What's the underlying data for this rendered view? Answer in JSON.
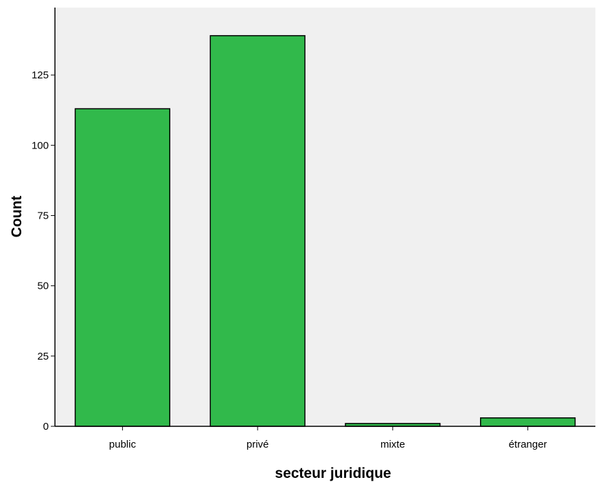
{
  "chart_data": {
    "type": "bar",
    "categories": [
      "public",
      "privé",
      "mixte",
      "étranger"
    ],
    "values": [
      113,
      139,
      1,
      3
    ],
    "xlabel": "secteur juridique",
    "ylabel": "Count",
    "ylim": [
      0,
      149
    ],
    "yticks": [
      0,
      25,
      50,
      75,
      100,
      125
    ],
    "grid": false,
    "colors": {
      "bar_fill": "#31b94b",
      "bar_stroke": "#000000",
      "plot_background": "#f0f0f0",
      "page_background": "#ffffff"
    }
  }
}
